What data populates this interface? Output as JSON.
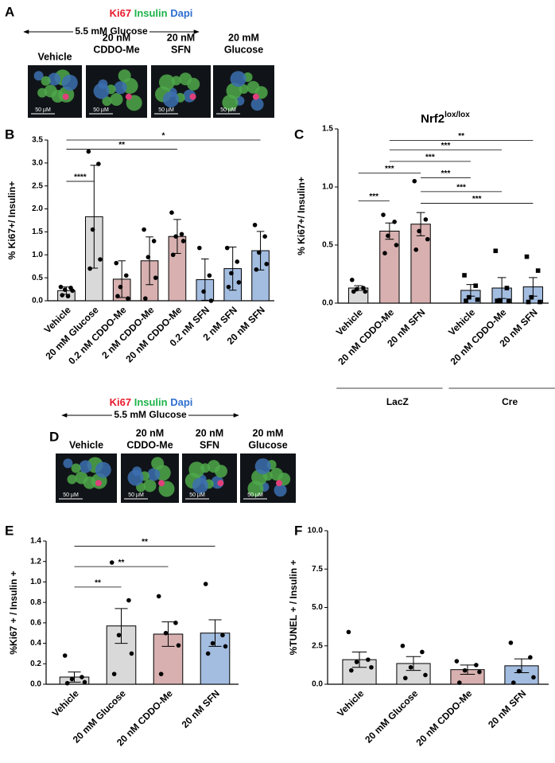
{
  "image_panels": [
    {
      "letter": "A",
      "stain": [
        {
          "name": "Ki67",
          "color": "#e8192c"
        },
        {
          "name": "Insulin",
          "color": "#1db34a"
        },
        {
          "name": "Dapi",
          "color": "#2f6fd1"
        }
      ],
      "condition": "5.5 mM Glucose",
      "labels": [
        [
          "Vehicle"
        ],
        [
          "20 nM",
          "CDDO-Me"
        ],
        [
          "20 nM",
          "SFN"
        ],
        [
          "20 mM",
          "Glucose"
        ]
      ],
      "scale_bar": "50 µM"
    },
    {
      "letter": "D",
      "stain": [
        {
          "name": "Ki67",
          "color": "#e8192c"
        },
        {
          "name": "Insulin",
          "color": "#1db34a"
        },
        {
          "name": "Dapi",
          "color": "#2f6fd1"
        }
      ],
      "condition": "5.5 mM Glucose",
      "labels": [
        [
          "Vehicle"
        ],
        [
          "20 nM",
          "CDDO-Me"
        ],
        [
          "20 nM",
          "SFN"
        ],
        [
          "20 mM",
          "Glucose"
        ]
      ],
      "scale_bar": "50 µM"
    }
  ],
  "chart_data": [
    {
      "type": "bar",
      "panel": "B",
      "ylabel": "% Ki67+/ Insulin+",
      "categories": [
        "Vehicle",
        "20 mM Glucose",
        "0.2 nM CDDO-Me",
        "2 nM CDDO-Me",
        "20 nM CDDO-Me",
        "0.2 nM SFN",
        "2 nM SFN",
        "20 nM SFN"
      ],
      "values": [
        0.22,
        1.83,
        0.47,
        0.87,
        1.4,
        0.46,
        0.7,
        1.09
      ],
      "errors": [
        0.08,
        1.12,
        0.4,
        0.52,
        0.37,
        0.45,
        0.47,
        0.42
      ],
      "colors": [
        "#d9d9d9",
        "#d9d9d9",
        "#d8b0b0",
        "#d8b0b0",
        "#d8b0b0",
        "#a3bde0",
        "#a3bde0",
        "#a3bde0"
      ],
      "points": [
        [
          0.3,
          0.28,
          0.24,
          0.22,
          0.12,
          0.1
        ],
        [
          3.25,
          2.98,
          1.55,
          0.9,
          0.7
        ],
        [
          0.82,
          0.55,
          0.3,
          0.05,
          0.1
        ],
        [
          1.55,
          1.3,
          0.95,
          0.5,
          0.05
        ],
        [
          1.92,
          1.45,
          1.4,
          1.3,
          1.0
        ],
        [
          1.15,
          0.55,
          0.2,
          0.0
        ],
        [
          1.15,
          0.85,
          0.6,
          0.4,
          0.3
        ],
        [
          1.65,
          1.4,
          1.05,
          0.8,
          0.68
        ]
      ],
      "ylim": [
        0,
        3.5
      ],
      "yticks": [
        {
          "value": 0,
          "label": "0.0"
        },
        0.5,
        {
          "value": 1,
          "label": "1.0"
        },
        1.5,
        {
          "value": 2,
          "label": "2.0"
        },
        2.5,
        {
          "value": 3,
          "label": "3.0"
        },
        3.5
      ],
      "significance": [
        {
          "label": "****",
          "between": [
            0,
            1
          ],
          "y": 2.6
        },
        {
          "label": "**",
          "between": [
            0,
            4
          ],
          "y": 3.3
        },
        {
          "label": "*",
          "between": [
            0,
            7
          ],
          "y": 3.5
        }
      ]
    },
    {
      "type": "bar",
      "panel": "C",
      "title": "Nrf2",
      "title_superscript": "lox/lox",
      "ylabel": "% Ki67+/ Insulin+",
      "categories": [
        "Vehicle",
        "20 nM CDDO-Me",
        "20 nM SFN",
        "Vehicle",
        "20 nM CDDO-Me",
        "20 nM SFN"
      ],
      "groups": [
        {
          "name": "LacZ",
          "count": 3
        },
        {
          "name": "Cre",
          "count": 3
        }
      ],
      "values": [
        0.13,
        0.62,
        0.68,
        0.11,
        0.13,
        0.14
      ],
      "errors": [
        0.02,
        0.07,
        0.1,
        0.05,
        0.09,
        0.08
      ],
      "colors": [
        "#d9d9d9",
        "#d8b0b0",
        "#d8b0b0",
        "#a3bde0",
        "#a3bde0",
        "#a3bde0"
      ],
      "markers": [
        "circle",
        "circle",
        "circle",
        "square",
        "square",
        "square"
      ],
      "points": [
        [
          0.2,
          0.13,
          0.12,
          0.1,
          0.1
        ],
        [
          0.76,
          0.7,
          0.58,
          0.5,
          0.43
        ],
        [
          1.05,
          0.72,
          0.62,
          0.55,
          0.46
        ],
        [
          0.24,
          0.15,
          0.05,
          0.03,
          0.02
        ],
        [
          0.45,
          0.13,
          0.02,
          0.02,
          0.02
        ],
        [
          0.4,
          0.28,
          0.05,
          0.01,
          0.01
        ]
      ],
      "ylim": [
        0,
        1.5
      ],
      "yticks": [
        {
          "value": 0,
          "label": "0.0"
        },
        0.5,
        {
          "value": 1,
          "label": "1.0"
        },
        1.5
      ],
      "significance": [
        {
          "label": "***",
          "between": [
            0,
            1
          ],
          "y": 0.88
        },
        {
          "label": "***",
          "between": [
            0,
            2
          ],
          "y": 1.12
        },
        {
          "label": "**",
          "between": [
            1,
            5
          ],
          "y": 1.4
        },
        {
          "label": "***",
          "between": [
            1,
            4
          ],
          "y": 1.32
        },
        {
          "label": "***",
          "between": [
            1,
            3
          ],
          "y": 1.22
        },
        {
          "label": "***",
          "between": [
            2,
            3
          ],
          "y": 1.08
        },
        {
          "label": "***",
          "between": [
            2,
            4
          ],
          "y": 0.96
        },
        {
          "label": "***",
          "between": [
            2,
            5
          ],
          "y": 0.86
        }
      ]
    },
    {
      "type": "bar",
      "panel": "E",
      "ylabel": "%Ki67 + / Insulin +",
      "categories": [
        "Vehicle",
        "20 mM Glucose",
        "20 nM CDDO-Me",
        "20 nM SFN"
      ],
      "values": [
        0.07,
        0.57,
        0.49,
        0.5
      ],
      "errors": [
        0.05,
        0.17,
        0.12,
        0.13
      ],
      "colors": [
        "#d9d9d9",
        "#d9d9d9",
        "#d8b0b0",
        "#a3bde0"
      ],
      "points": [
        [
          0.28,
          0.07,
          0.05,
          0.02,
          0.01
        ],
        [
          1.19,
          0.82,
          0.48,
          0.3,
          0.1
        ],
        [
          0.86,
          0.6,
          0.5,
          0.38,
          0.1
        ],
        [
          0.98,
          0.48,
          0.4,
          0.37,
          0.3
        ]
      ],
      "ylim": [
        0,
        1.4
      ],
      "yticks": [
        {
          "value": 0,
          "label": "0.0"
        },
        0.2,
        0.4,
        0.6,
        0.8,
        {
          "value": 1,
          "label": "1.0"
        },
        1.2,
        1.4
      ],
      "significance": [
        {
          "label": "**",
          "between": [
            0,
            1
          ],
          "y": 0.95
        },
        {
          "label": "**",
          "between": [
            0,
            2
          ],
          "y": 1.15
        },
        {
          "label": "**",
          "between": [
            0,
            3
          ],
          "y": 1.35
        }
      ]
    },
    {
      "type": "bar",
      "panel": "F",
      "ylabel": "%TUNEL + / Insulin +",
      "categories": [
        "Vehicle",
        "20 mM Glucose",
        "20 nM CDDO-Me",
        "20 nM SFN"
      ],
      "values": [
        1.6,
        1.35,
        0.95,
        1.2
      ],
      "errors": [
        0.5,
        0.45,
        0.3,
        0.45
      ],
      "colors": [
        "#d9d9d9",
        "#d9d9d9",
        "#d8b0b0",
        "#a3bde0"
      ],
      "points": [
        [
          3.4,
          1.6,
          1.45,
          1.1,
          0.9
        ],
        [
          2.5,
          2.1,
          1.1,
          0.6,
          0.4
        ],
        [
          1.5,
          1.25,
          0.9,
          0.8,
          0.1
        ],
        [
          2.7,
          1.75,
          0.85,
          0.45,
          0.1
        ]
      ],
      "ylim": [
        0,
        10
      ],
      "yticks": [
        {
          "value": 0,
          "label": "0.0"
        },
        2.5,
        {
          "value": 5,
          "label": "5.0"
        },
        7.5,
        {
          "value": 10,
          "label": "10.0"
        }
      ]
    }
  ]
}
